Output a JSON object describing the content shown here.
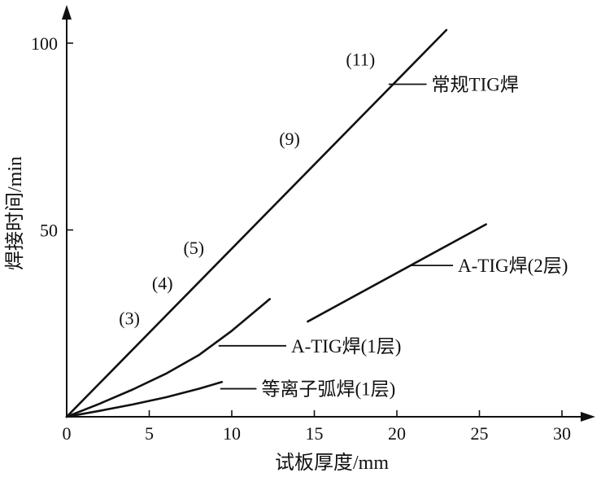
{
  "chart_data": {
    "type": "line",
    "xlabel": "试板厚度/mm",
    "ylabel": "焊接时间/min",
    "xlim": [
      0,
      32
    ],
    "ylim": [
      0,
      110
    ],
    "xticks": [
      0,
      5,
      10,
      15,
      20,
      25,
      30
    ],
    "yticks": [
      50,
      100
    ],
    "xtick_labels": [
      "0",
      "5",
      "10",
      "15",
      "20",
      "25",
      "30"
    ],
    "ytick_labels": [
      "50",
      "100"
    ],
    "grid": false,
    "legend": "none",
    "series": [
      {
        "name": "常规TIG焊",
        "x": [
          0,
          23
        ],
        "y": [
          0,
          103.5
        ]
      },
      {
        "name": "A-TIG焊(2层)",
        "x": [
          14.6,
          25.4
        ],
        "y": [
          25.5,
          51.5
        ]
      },
      {
        "name": "A-TIG焊(1层)",
        "x": [
          0,
          2,
          4,
          6,
          8,
          10,
          12.3
        ],
        "y": [
          0,
          3.5,
          7.3,
          11.5,
          16.5,
          23,
          31.5
        ]
      },
      {
        "name": "等离子弧焊(1层)",
        "x": [
          0,
          2,
          4,
          6,
          8,
          9.4
        ],
        "y": [
          0,
          1.6,
          3.3,
          5.2,
          7.5,
          9.3
        ]
      }
    ],
    "annotations": [
      {
        "text": "(3)",
        "x": 3.8,
        "y": 26.5
      },
      {
        "text": "(4)",
        "x": 5.8,
        "y": 35.8
      },
      {
        "text": "(5)",
        "x": 7.7,
        "y": 45.3
      },
      {
        "text": "(9)",
        "x": 13.5,
        "y": 74.5
      },
      {
        "text": "(11)",
        "x": 17.8,
        "y": 95.8
      }
    ],
    "series_labels": [
      {
        "text": "常规TIG焊",
        "leader_from": [
          19.5,
          89
        ],
        "leader_to": [
          21.8,
          89
        ]
      },
      {
        "text": "A-TIG焊(2层)",
        "leader_from": [
          20.8,
          40.5
        ],
        "leader_to": [
          23.4,
          40.5
        ]
      },
      {
        "text": "A-TIG焊(1层)",
        "leader_from": [
          9.2,
          19
        ],
        "leader_to": [
          13.3,
          19
        ]
      },
      {
        "text": "等离子弧焊(1层)",
        "leader_from": [
          9.3,
          7.5
        ],
        "leader_to": [
          11.5,
          7.5
        ]
      }
    ]
  }
}
